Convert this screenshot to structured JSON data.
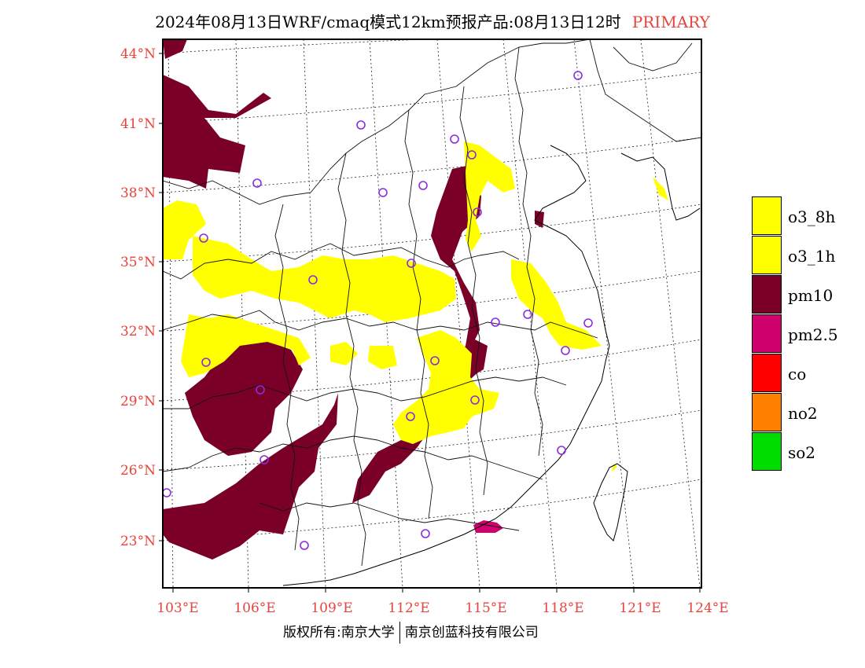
{
  "title": {
    "main": "2024年08月13日WRF/cmaq模式12km预报产品:08月13日12时",
    "tag": "PRIMARY"
  },
  "colors": {
    "o3_8h": "#ffff00",
    "o3_1h": "#ffff00",
    "pm10": "#7a0028",
    "pm2_5": "#d0006f",
    "co": "#ff0000",
    "no2": "#ff7f00",
    "so2": "#00dd00",
    "axis_label": "#e8433c",
    "station": "#8a2be2"
  },
  "map": {
    "lon_range": [
      102.8,
      124.0
    ],
    "lat_range": [
      21.8,
      44.5
    ],
    "lat_ticks": [
      "44°N",
      "41°N",
      "38°N",
      "35°N",
      "32°N",
      "29°N",
      "26°N",
      "23°N"
    ],
    "lon_ticks": [
      "103°E",
      "106°E",
      "109°E",
      "112°E",
      "115°E",
      "118°E",
      "121°E",
      "124°E"
    ]
  },
  "legend": [
    {
      "key": "o3_8h",
      "label": "o3_8h"
    },
    {
      "key": "o3_1h",
      "label": "o3_1h"
    },
    {
      "key": "pm10",
      "label": "pm10"
    },
    {
      "key": "pm2_5",
      "label": "pm2.5"
    },
    {
      "key": "co",
      "label": "co"
    },
    {
      "key": "no2",
      "label": "no2"
    },
    {
      "key": "so2",
      "label": "so2"
    }
  ],
  "footer": {
    "left": "版权所有:南京大学",
    "right": "南京创蓝科技有限公司"
  }
}
